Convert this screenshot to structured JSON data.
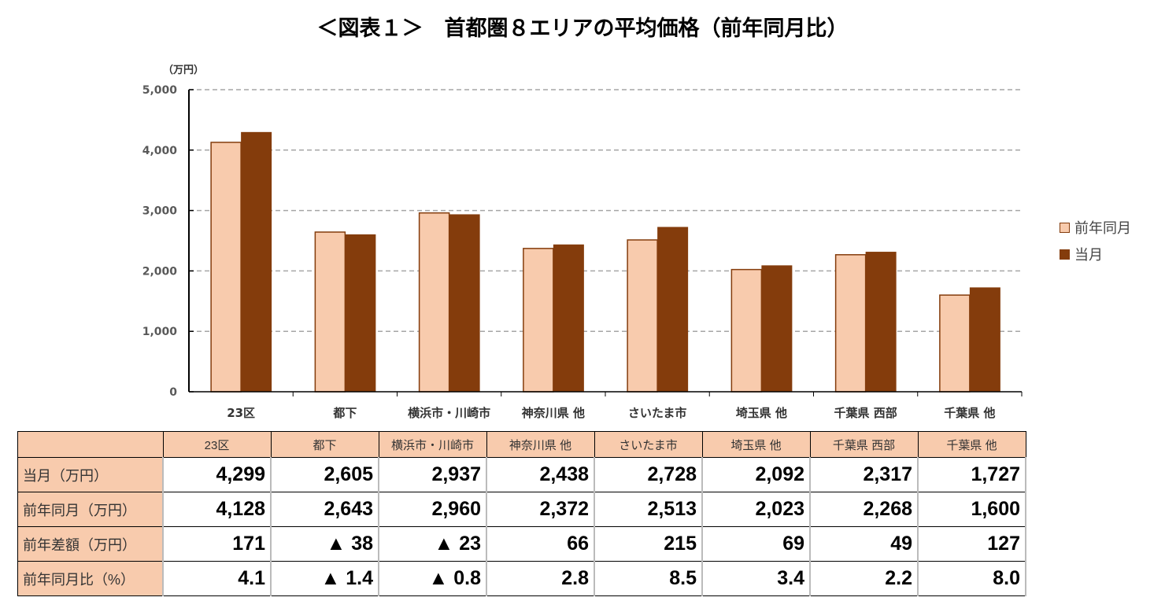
{
  "title": "＜図表１＞　首都圏８エリアの平均価格（前年同月比）",
  "chart_data": {
    "type": "bar",
    "title": "＜図表１＞　首都圏８エリアの平均価格（前年同月比）",
    "ylabel": "（万円）",
    "ylim": [
      0,
      5000
    ],
    "yticks": [
      "0",
      "1,000",
      "2,000",
      "3,000",
      "4,000",
      "5,000"
    ],
    "grid": true,
    "legend_position": "right",
    "categories": [
      "23区",
      "都下",
      "横浜市・川崎市",
      "神奈川県 他",
      "さいたま市",
      "埼玉県 他",
      "千葉県 西部",
      "千葉県 他"
    ],
    "series": [
      {
        "name": "前年同月",
        "color": "#f8cbad",
        "values": [
          4128,
          2643,
          2960,
          2372,
          2513,
          2023,
          2268,
          1600
        ]
      },
      {
        "name": "当月",
        "color": "#843c0c",
        "values": [
          4299,
          2605,
          2937,
          2438,
          2728,
          2092,
          2317,
          1727
        ]
      }
    ]
  },
  "table": {
    "header": [
      "",
      "23区",
      "都下",
      "横浜市・川崎市",
      "神奈川県 他",
      "さいたま市",
      "埼玉県 他",
      "千葉県 西部",
      "千葉県 他"
    ],
    "rows": [
      {
        "label": "当月（万円）",
        "cells": [
          "4,299",
          "2,605",
          "2,937",
          "2,438",
          "2,728",
          "2,092",
          "2,317",
          "1,727"
        ]
      },
      {
        "label": "前年同月（万円）",
        "cells": [
          "4,128",
          "2,643",
          "2,960",
          "2,372",
          "2,513",
          "2,023",
          "2,268",
          "1,600"
        ]
      },
      {
        "label": "前年差額（万円）",
        "cells": [
          "171",
          "▲ 38",
          "▲ 23",
          "66",
          "215",
          "69",
          "49",
          "127"
        ]
      },
      {
        "label": "前年同月比（%）",
        "cells": [
          "4.1",
          "▲ 1.4",
          "▲ 0.8",
          "2.8",
          "8.5",
          "3.4",
          "2.2",
          "8.0"
        ]
      }
    ]
  }
}
